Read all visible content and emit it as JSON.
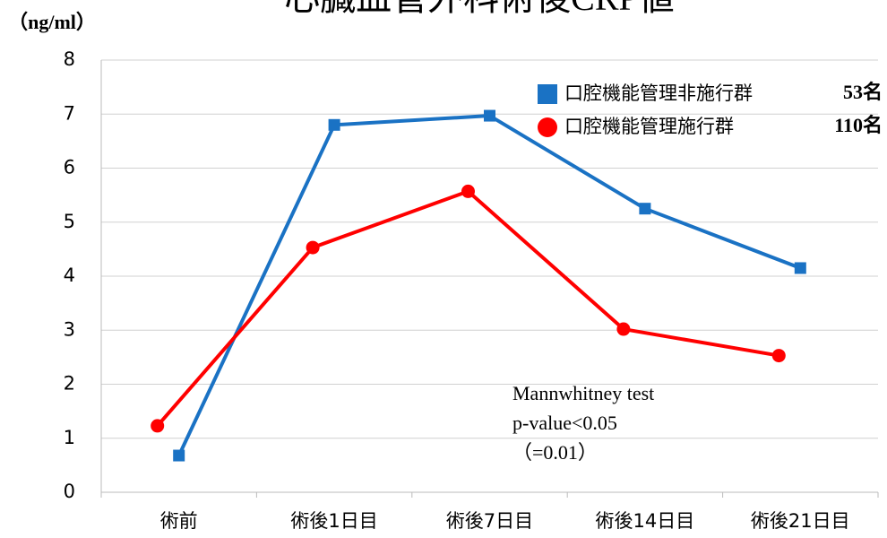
{
  "chart_data": {
    "type": "line",
    "title": "心臓血管外科術後CRP値",
    "y_label": "（ng/ml）",
    "categories": [
      "術前",
      "術後1日目",
      "術後7日目",
      "術後14日目",
      "術後21日目"
    ],
    "series": [
      {
        "name": "口腔機能管理非施行群",
        "count_label": "53名",
        "color": "#1a72c4",
        "marker": "square",
        "values": [
          0.68,
          6.8,
          6.97,
          5.25,
          4.15
        ]
      },
      {
        "name": "口腔機能管理施行群",
        "count_label": "110名",
        "color": "#ff0000",
        "marker": "circle",
        "values": [
          1.23,
          4.53,
          5.57,
          3.02,
          2.53
        ]
      }
    ],
    "annotation": [
      "Mannwhitney test",
      "p-value<0.05",
      "（=0.01）"
    ],
    "ylim": [
      0,
      8
    ],
    "yticks": [
      0,
      1,
      2,
      3,
      4,
      5,
      6,
      7,
      8
    ],
    "grid": true,
    "legend": "upper right"
  }
}
